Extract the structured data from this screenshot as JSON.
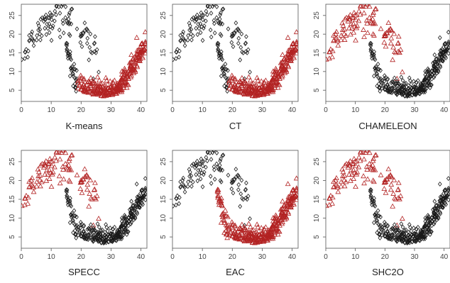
{
  "palette": {
    "cluster_black": "#1a1a1a",
    "cluster_red": "#b22222",
    "axis": "#555555",
    "tick_text": "#444444",
    "title_text": "#222222"
  },
  "chart_data": [
    {
      "type": "scatter",
      "title": "K-means",
      "xlim": [
        0,
        42
      ],
      "ylim": [
        2,
        28
      ],
      "xticks": [
        0,
        10,
        20,
        30,
        40
      ],
      "yticks": [
        5,
        10,
        15,
        20,
        25
      ],
      "grid": false,
      "assignment": {
        "left_arc": "black",
        "left_join": "black",
        "bottom_arc": "red",
        "right_arc": "red"
      },
      "marker_note": "black diamonds, red triangles"
    },
    {
      "type": "scatter",
      "title": "CT",
      "xlim": [
        0,
        42
      ],
      "ylim": [
        2,
        28
      ],
      "xticks": [
        0,
        10,
        20,
        30,
        40
      ],
      "yticks": [
        5,
        10,
        15,
        20,
        25
      ],
      "grid": false,
      "assignment": {
        "left_arc": "black",
        "left_join": "black",
        "bottom_arc": "red",
        "right_arc": "red"
      }
    },
    {
      "type": "scatter",
      "title": "CHAMELEON",
      "xlim": [
        0,
        42
      ],
      "ylim": [
        2,
        28
      ],
      "xticks": [
        0,
        10,
        20,
        30,
        40
      ],
      "yticks": [
        5,
        10,
        15,
        20,
        25
      ],
      "grid": false,
      "assignment": {
        "left_arc": "red",
        "left_join": "black",
        "bottom_arc": "black",
        "right_arc": "black"
      }
    },
    {
      "type": "scatter",
      "title": "SPECC",
      "xlim": [
        0,
        42
      ],
      "ylim": [
        2,
        28
      ],
      "xticks": [
        0,
        10,
        20,
        30,
        40
      ],
      "yticks": [
        5,
        10,
        15,
        20,
        25
      ],
      "grid": false,
      "assignment": {
        "left_arc": "red",
        "left_join": "black",
        "bottom_arc": "black",
        "right_arc": "black"
      }
    },
    {
      "type": "scatter",
      "title": "EAC",
      "xlim": [
        0,
        42
      ],
      "ylim": [
        2,
        28
      ],
      "xticks": [
        0,
        10,
        20,
        30,
        40
      ],
      "yticks": [
        5,
        10,
        15,
        20,
        25
      ],
      "grid": false,
      "assignment": {
        "left_arc": "black",
        "left_join": "red",
        "bottom_arc": "red",
        "right_arc": "red"
      }
    },
    {
      "type": "scatter",
      "title": "SHC2O",
      "xlim": [
        0,
        42
      ],
      "ylim": [
        2,
        28
      ],
      "xticks": [
        0,
        10,
        20,
        30,
        40
      ],
      "yticks": [
        5,
        10,
        15,
        20,
        25
      ],
      "grid": false,
      "assignment": {
        "left_arc": "red",
        "left_join": "black",
        "bottom_arc": "black",
        "right_arc": "black"
      }
    }
  ]
}
